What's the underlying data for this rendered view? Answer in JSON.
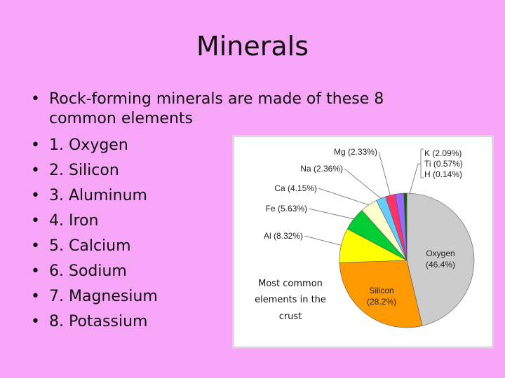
{
  "slide": {
    "title": "Minerals",
    "bullets": [
      "Rock-forming minerals are made of these 8 common elements",
      "1. Oxygen",
      "2. Silicon",
      "3. Aluminum",
      "4. Iron",
      "5. Calcium",
      "6. Sodium",
      "7. Magnesium",
      "8. Potassium"
    ],
    "bullet_glyph": "•"
  },
  "chart_data": {
    "type": "pie",
    "title": "",
    "caption": [
      "Most common",
      "elements in the",
      "crust"
    ],
    "slices": [
      {
        "label": "Oxygen",
        "value": 46.4,
        "value_text": "(46.4%)",
        "color": "#cccccc"
      },
      {
        "label": "Silicon",
        "value": 28.2,
        "value_text": "(28.2%)",
        "color": "#ff9900"
      },
      {
        "label": "Al",
        "value": 8.32,
        "value_text": "(8.32%)",
        "color": "#ffff00"
      },
      {
        "label": "Fe",
        "value": 5.63,
        "value_text": "(5.63%)",
        "color": "#00cc33"
      },
      {
        "label": "Ca",
        "value": 4.15,
        "value_text": "(4.15%)",
        "color": "#ffffcc"
      },
      {
        "label": "Na",
        "value": 2.36,
        "value_text": "(2.36%)",
        "color": "#66ccff"
      },
      {
        "label": "Mg",
        "value": 2.33,
        "value_text": "(2.33%)",
        "color": "#ff3366"
      },
      {
        "label": "K",
        "value": 2.09,
        "value_text": "(2.09%)",
        "color": "#9966ff"
      },
      {
        "label": "Ti",
        "value": 0.57,
        "value_text": "(0.57%)",
        "color": "#006600"
      },
      {
        "label": "H",
        "value": 0.14,
        "value_text": "(0.14%)",
        "color": "#000000"
      }
    ]
  }
}
